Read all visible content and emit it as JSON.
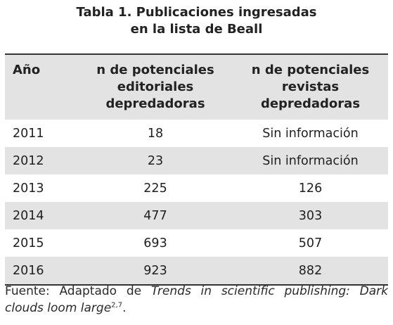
{
  "title": {
    "line1": "Tabla 1. Publicaciones ingresadas",
    "line2": "en la lista de Beall"
  },
  "table": {
    "headers": {
      "year": "Año",
      "editorials": [
        "n de potenciales",
        "editoriales",
        "depredadoras"
      ],
      "journals": [
        "n de potenciales",
        "revistas",
        "depredadoras"
      ]
    },
    "rows": [
      {
        "year": "2011",
        "editorials": "18",
        "journals": "Sin información"
      },
      {
        "year": "2012",
        "editorials": "23",
        "journals": "Sin información"
      },
      {
        "year": "2013",
        "editorials": "225",
        "journals": "126"
      },
      {
        "year": "2014",
        "editorials": "477",
        "journals": "303"
      },
      {
        "year": "2015",
        "editorials": "693",
        "journals": "507"
      },
      {
        "year": "2016",
        "editorials": "923",
        "journals": "882"
      }
    ]
  },
  "source": {
    "prefix": "Fuente: Adaptado de ",
    "work_title": "Trends in scientific publishing: Dark clouds loom large",
    "refs": "2,7",
    "suffix": "."
  }
}
